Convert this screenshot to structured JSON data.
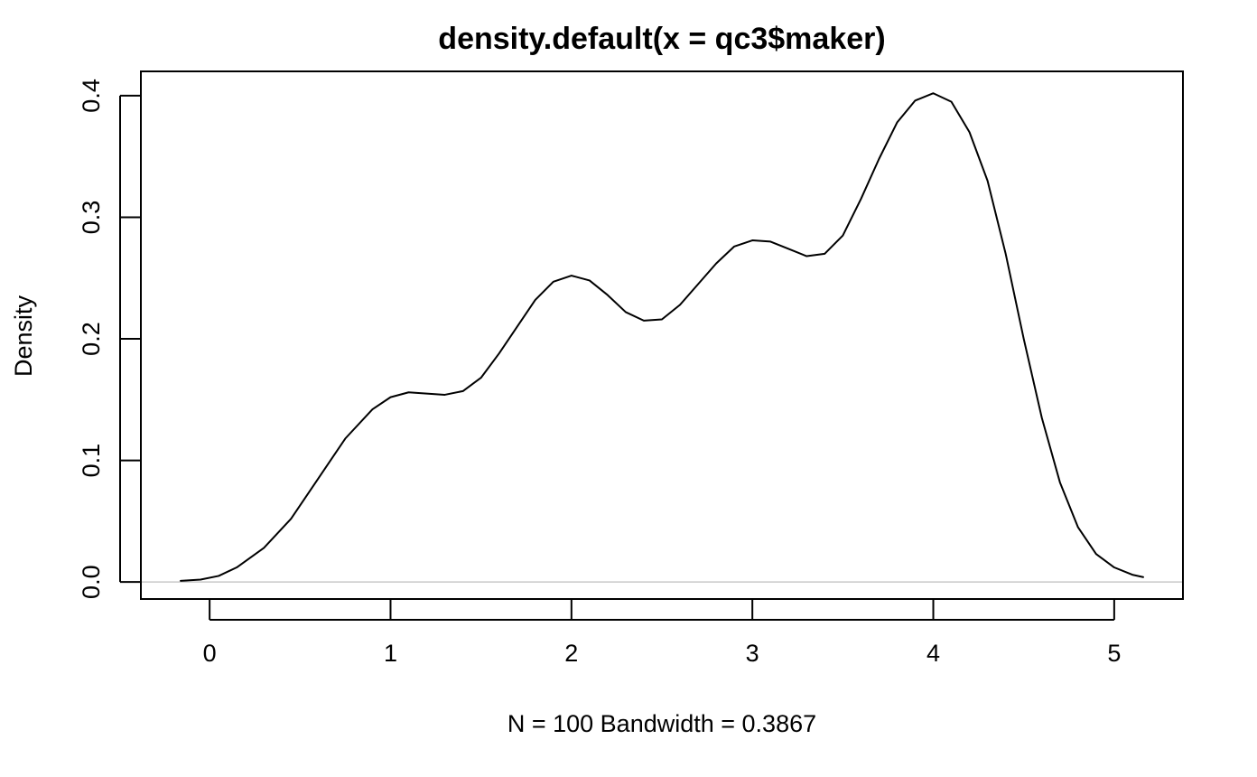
{
  "chart_data": {
    "type": "line",
    "title": "density.default(x = qc3$maker)",
    "xlabel": "N = 100   Bandwidth = 0.3867",
    "ylabel": "Density",
    "xlim": [
      -0.38,
      5.38
    ],
    "ylim": [
      -0.014,
      0.42
    ],
    "x_ticks": [
      0,
      1,
      2,
      3,
      4,
      5
    ],
    "x_tick_labels": [
      "0",
      "1",
      "2",
      "3",
      "4",
      "5"
    ],
    "y_ticks": [
      0.0,
      0.1,
      0.2,
      0.3,
      0.4
    ],
    "y_tick_labels": [
      "0.0",
      "0.1",
      "0.2",
      "0.3",
      "0.4"
    ],
    "baseline": 0,
    "colors": {
      "line": "#000000",
      "baseline": "#bebebe",
      "frame": "#000000"
    },
    "series": [
      {
        "x": [
          -0.16,
          -0.05,
          0.05,
          0.15,
          0.3,
          0.45,
          0.6,
          0.75,
          0.9,
          1.0,
          1.1,
          1.2,
          1.3,
          1.4,
          1.5,
          1.6,
          1.7,
          1.8,
          1.9,
          2.0,
          2.1,
          2.2,
          2.3,
          2.4,
          2.5,
          2.6,
          2.7,
          2.8,
          2.9,
          3.0,
          3.1,
          3.2,
          3.3,
          3.4,
          3.5,
          3.6,
          3.7,
          3.8,
          3.9,
          4.0,
          4.1,
          4.2,
          4.3,
          4.4,
          4.5,
          4.6,
          4.7,
          4.8,
          4.9,
          5.0,
          5.1,
          5.16
        ],
        "values": [
          0.001,
          0.002,
          0.005,
          0.012,
          0.028,
          0.052,
          0.085,
          0.118,
          0.142,
          0.152,
          0.156,
          0.155,
          0.154,
          0.157,
          0.168,
          0.188,
          0.21,
          0.232,
          0.247,
          0.252,
          0.248,
          0.236,
          0.222,
          0.215,
          0.216,
          0.228,
          0.245,
          0.262,
          0.276,
          0.281,
          0.28,
          0.274,
          0.268,
          0.27,
          0.285,
          0.315,
          0.348,
          0.378,
          0.396,
          0.402,
          0.395,
          0.37,
          0.33,
          0.27,
          0.2,
          0.135,
          0.082,
          0.045,
          0.023,
          0.012,
          0.006,
          0.004
        ]
      }
    ]
  }
}
